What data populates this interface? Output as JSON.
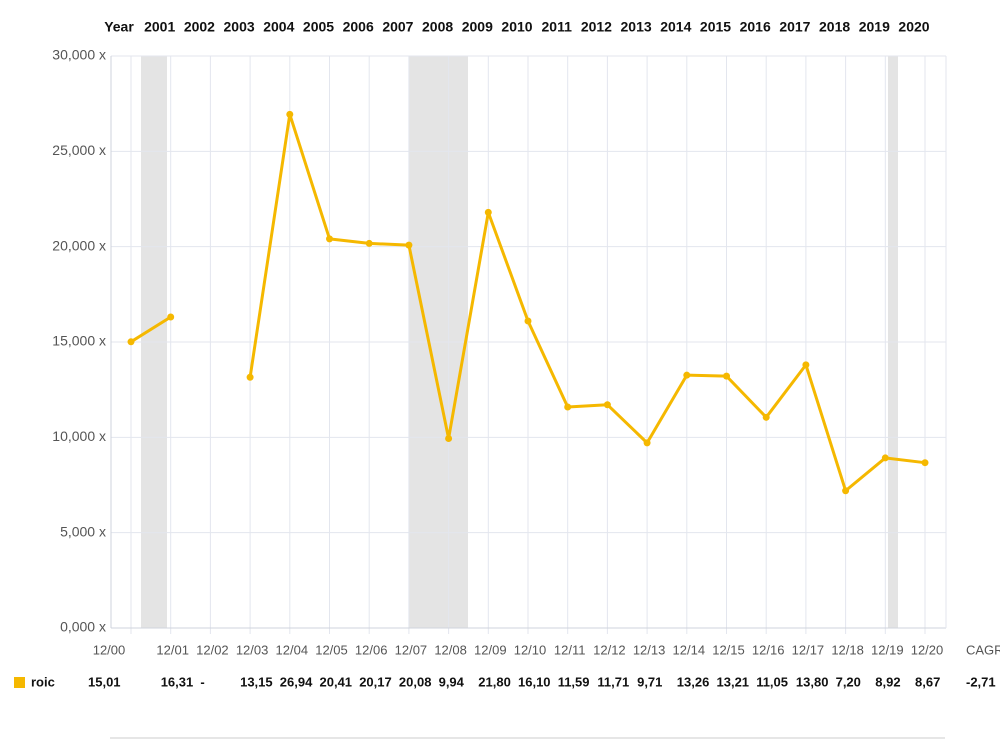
{
  "chart_data": {
    "type": "line",
    "header_label": "Year",
    "header_years": [
      "2001",
      "2002",
      "2003",
      "2004",
      "2005",
      "2006",
      "2007",
      "2008",
      "2009",
      "2010",
      "2011",
      "2012",
      "2013",
      "2014",
      "2015",
      "2016",
      "2017",
      "2018",
      "2019",
      "2020"
    ],
    "categories": [
      "12/00",
      "12/01",
      "12/02",
      "12/03",
      "12/04",
      "12/05",
      "12/06",
      "12/07",
      "12/08",
      "12/09",
      "12/10",
      "12/11",
      "12/12",
      "12/13",
      "12/14",
      "12/15",
      "12/16",
      "12/17",
      "12/18",
      "12/19",
      "12/20"
    ],
    "series": [
      {
        "name": "roic",
        "color": "#f5b800",
        "values": [
          15.01,
          16.31,
          null,
          13.15,
          26.94,
          20.41,
          20.17,
          20.08,
          9.94,
          21.8,
          16.1,
          11.59,
          11.71,
          9.71,
          13.26,
          13.21,
          11.05,
          13.8,
          7.2,
          8.92,
          8.67
        ],
        "value_labels": [
          "15,01",
          "16,31",
          "-",
          "13,15",
          "26,94",
          "20,41",
          "20,17",
          "20,08",
          "9,94",
          "21,80",
          "16,10",
          "11,59",
          "11,71",
          "9,71",
          "13,26",
          "13,21",
          "11,05",
          "13,80",
          "7,20",
          "8,92",
          "8,67"
        ]
      }
    ],
    "cagr_label": "CAGR",
    "cagr_value": -2.71,
    "cagr_value_label": "-2,71",
    "ylim": [
      0,
      30
    ],
    "yticks": [
      {
        "value": 0,
        "label": "0,000 x"
      },
      {
        "value": 5,
        "label": "5,000 x"
      },
      {
        "value": 10,
        "label": "10,000 x"
      },
      {
        "value": 15,
        "label": "15,000 x"
      },
      {
        "value": 20,
        "label": "20,000 x"
      },
      {
        "value": 25,
        "label": "25,000 x"
      },
      {
        "value": 30,
        "label": "30,000 x"
      }
    ],
    "grid": true
  }
}
